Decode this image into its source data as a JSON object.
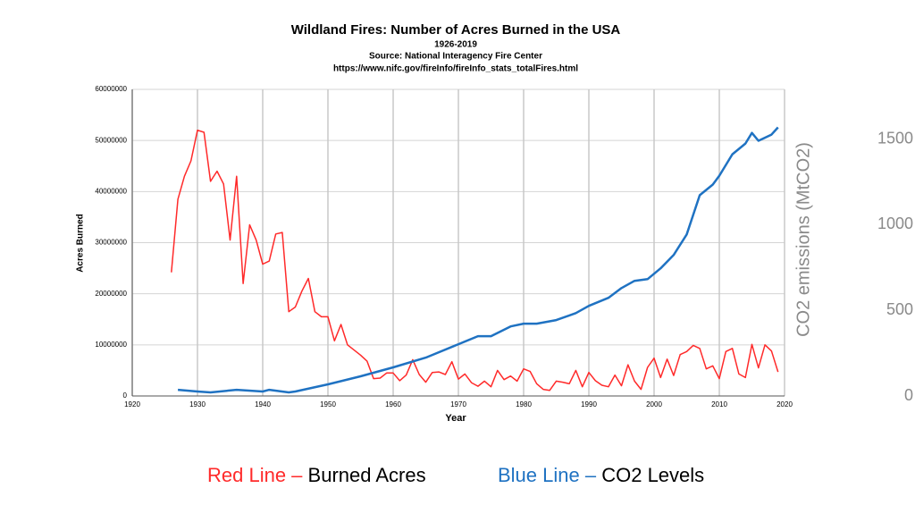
{
  "chart_data": {
    "type": "line",
    "title": "Wildland Fires: Number of Acres Burned in the USA",
    "subtitle": [
      "1926-2019",
      "Source: National Interagency Fire Center",
      "https://www.nifc.gov/fireInfo/fireInfo_stats_totalFires.html"
    ],
    "x_label": "Year",
    "y_label": "Acres Burned",
    "y2_label": "CO2 emissions (MtCO2)",
    "xlim": [
      1920,
      2020
    ],
    "xticks": [
      1920,
      1930,
      1940,
      1950,
      1960,
      1970,
      1980,
      1990,
      2000,
      2010,
      2020
    ],
    "ylim": [
      0,
      60000000
    ],
    "yticks": [
      0,
      10000000,
      20000000,
      30000000,
      40000000,
      50000000,
      60000000
    ],
    "y2lim": [
      0,
      1790
    ],
    "y2ticks": [
      0,
      500,
      1000,
      1500
    ],
    "grid": true,
    "legend_keys": [
      "Red Line –",
      "Blue Line –"
    ],
    "series": [
      {
        "name": "Burned Acres",
        "color": "#ff2a2a",
        "x": [
          1926,
          1927,
          1928,
          1929,
          1930,
          1931,
          1932,
          1933,
          1934,
          1935,
          1936,
          1937,
          1938,
          1939,
          1940,
          1941,
          1942,
          1943,
          1944,
          1945,
          1946,
          1947,
          1948,
          1949,
          1950,
          1951,
          1952,
          1953,
          1954,
          1955,
          1956,
          1957,
          1958,
          1959,
          1960,
          1961,
          1962,
          1963,
          1964,
          1965,
          1966,
          1967,
          1968,
          1969,
          1970,
          1971,
          1972,
          1973,
          1974,
          1975,
          1976,
          1977,
          1978,
          1979,
          1980,
          1981,
          1982,
          1983,
          1984,
          1985,
          1986,
          1987,
          1988,
          1989,
          1990,
          1991,
          1992,
          1993,
          1994,
          1995,
          1996,
          1997,
          1998,
          1999,
          2000,
          2001,
          2002,
          2003,
          2004,
          2005,
          2006,
          2007,
          2008,
          2009,
          2010,
          2011,
          2012,
          2013,
          2014,
          2015,
          2016,
          2017,
          2018,
          2019
        ],
        "values": [
          24200000,
          38500000,
          43000000,
          46000000,
          52000000,
          51600000,
          42000000,
          44000000,
          41500000,
          30500000,
          43000000,
          22000000,
          33500000,
          30500000,
          25800000,
          26400000,
          31700000,
          32000000,
          16500000,
          17400000,
          20500000,
          23000000,
          16500000,
          15500000,
          15500000,
          10800000,
          14000000,
          10000000,
          9000000,
          8000000,
          6800000,
          3400000,
          3500000,
          4500000,
          4500000,
          3000000,
          4100000,
          7100000,
          4200000,
          2700000,
          4600000,
          4700000,
          4200000,
          6700000,
          3300000,
          4300000,
          2600000,
          1900000,
          2900000,
          1800000,
          5000000,
          3200000,
          3900000,
          2900000,
          5300000,
          4800000,
          2400000,
          1300000,
          1100000,
          2900000,
          2700000,
          2400000,
          5000000,
          1800000,
          4600000,
          3000000,
          2100000,
          1800000,
          4100000,
          2000000,
          6100000,
          2900000,
          1300000,
          5600000,
          7400000,
          3600000,
          7200000,
          4000000,
          8100000,
          8700000,
          9900000,
          9300000,
          5300000,
          5900000,
          3400000,
          8700000,
          9300000,
          4300000,
          3600000,
          10100000,
          5500000,
          10000000,
          8800000,
          4700000
        ]
      },
      {
        "name": "CO2 Levels",
        "color": "#1f72c2",
        "axis": "y2",
        "x": [
          1927,
          1930,
          1932,
          1936,
          1940,
          1941,
          1944,
          1945,
          1950,
          1955,
          1960,
          1965,
          1970,
          1973,
          1975,
          1978,
          1980,
          1982,
          1985,
          1988,
          1990,
          1993,
          1995,
          1997,
          1999,
          2001,
          2003,
          2005,
          2007,
          2009,
          2010,
          2012,
          2014,
          2015,
          2016,
          2018,
          2019
        ],
        "values": [
          36,
          26,
          21,
          36,
          26,
          36,
          21,
          26,
          68,
          115,
          167,
          224,
          302,
          349,
          349,
          406,
          422,
          422,
          443,
          484,
          526,
          573,
          630,
          672,
          682,
          745,
          823,
          943,
          1172,
          1234,
          1286,
          1411,
          1474,
          1536,
          1490,
          1526,
          1568
        ]
      }
    ]
  }
}
